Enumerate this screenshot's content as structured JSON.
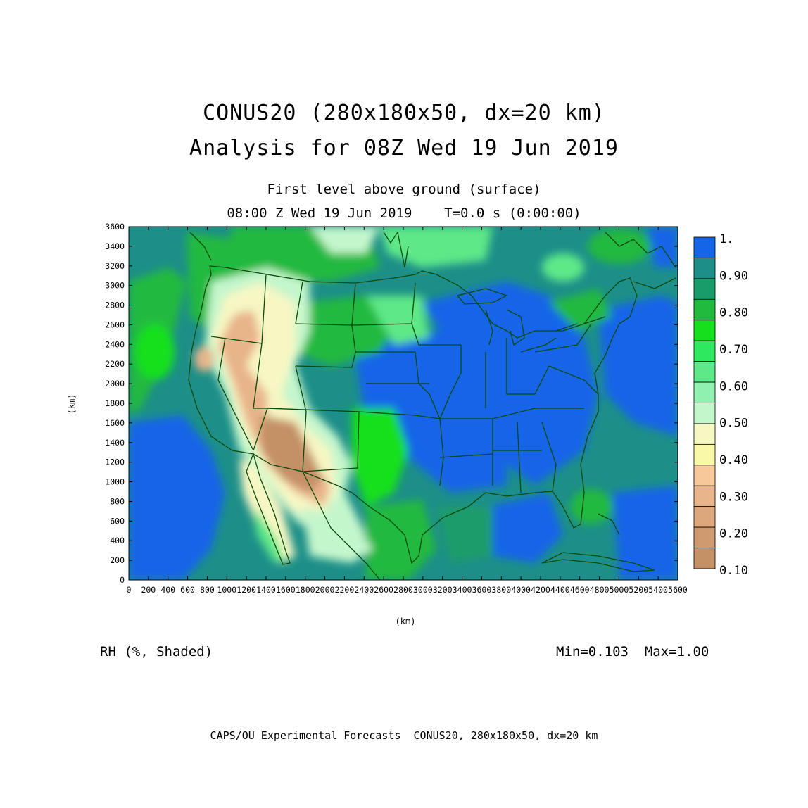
{
  "titles": {
    "line1": "CONUS20 (280x180x50, dx=20 km)",
    "line2": "Analysis for 08Z Wed 19 Jun 2019",
    "level": "First level above ground (surface)",
    "valid": "08:00 Z Wed 19 Jun 2019    T=0.0 s (0:00:00)"
  },
  "axes": {
    "x_label": "(km)",
    "y_label": "(km)",
    "x_ticks": [
      "0",
      "200",
      "400",
      "600",
      "800",
      "1000",
      "1200",
      "1400",
      "1600",
      "1800",
      "2000",
      "2200",
      "2400",
      "2600",
      "2800",
      "3000",
      "3200",
      "3400",
      "3600",
      "3800",
      "4000",
      "4200",
      "4400",
      "4600",
      "4800",
      "5000",
      "5200",
      "5400",
      "5600"
    ],
    "y_ticks": [
      "0",
      "200",
      "400",
      "600",
      "800",
      "1000",
      "1200",
      "1400",
      "1600",
      "1800",
      "2000",
      "2200",
      "2400",
      "2600",
      "2800",
      "3000",
      "3200",
      "3400",
      "3600"
    ]
  },
  "colorbar": {
    "labels": [
      "1.",
      "0.90",
      "0.80",
      "0.70",
      "0.60",
      "0.50",
      "0.40",
      "0.30",
      "0.20",
      "0.10"
    ],
    "colors": [
      "#1565e8",
      "#1d8f88",
      "#1a9c6a",
      "#22b93f",
      "#14e01e",
      "#2ee860",
      "#5ee888",
      "#8ff0b0",
      "#c4f6cc",
      "#f7f7c4",
      "#f8f8a8",
      "#f7c89a",
      "#e8b48a",
      "#dca77c",
      "#cf9a70",
      "#c49066"
    ]
  },
  "field_label": "RH (%, Shaded)",
  "stats": "Min=0.103  Max=1.00",
  "footer": "CAPS/OU Experimental Forecasts  CONUS20, 280x180x50, dx=20 km",
  "palette": {
    "ocean_wet": "#1565e8",
    "teal": "#1d8f88",
    "green_dark": "#1a9c6a",
    "green": "#22c040",
    "bright_green": "#14e01e",
    "light_green": "#5ee888",
    "pale_green": "#c4f6cc",
    "pale_yellow": "#f7f7c4",
    "tan": "#e8b48a",
    "brown": "#c49066",
    "border": "#0a4a0a"
  }
}
